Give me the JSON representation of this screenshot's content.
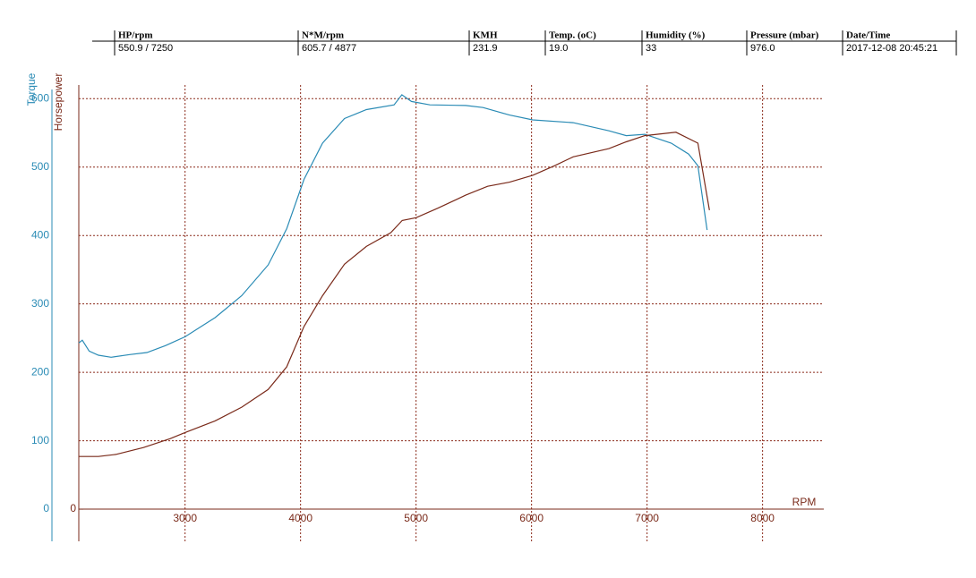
{
  "header": {
    "columns": [
      "HP/rpm",
      "N*M/rpm",
      "KMH",
      "Temp. (oC)",
      "Humidity (%)",
      "Pressure (mbar)",
      "Date/Time"
    ],
    "values": [
      "550.9 / 7250",
      "605.7 / 4877",
      "231.9",
      "19.0",
      "33",
      "976.0",
      "2017-12-08 20:45:21"
    ]
  },
  "chart_data": {
    "type": "line",
    "x_label": "RPM",
    "xlim": [
      2080,
      8530
    ],
    "xticks": [
      3000,
      4000,
      5000,
      6000,
      7000,
      8000
    ],
    "ylim": [
      -47,
      620
    ],
    "yticks": [
      0,
      100,
      200,
      300,
      400,
      500,
      600
    ],
    "y2lim": [
      -47,
      620
    ],
    "y2ticks": [
      0
    ],
    "grid": true,
    "series": [
      {
        "name": "Torque",
        "color": "#2a8bb5",
        "x": [
          2080,
          2110,
          2170,
          2250,
          2360,
          2520,
          2670,
          2830,
          3000,
          3260,
          3490,
          3720,
          3880,
          4030,
          4190,
          4380,
          4570,
          4810,
          4877,
          4960,
          5120,
          5430,
          5580,
          5810,
          6010,
          6360,
          6670,
          6820,
          6980,
          7210,
          7360,
          7440,
          7520
        ],
        "values": [
          243,
          247,
          231,
          225,
          222,
          226,
          229,
          239,
          252,
          280,
          312,
          357,
          410,
          482,
          535,
          571,
          584,
          591,
          605.7,
          596,
          591,
          590,
          587,
          576,
          569,
          565,
          553,
          546,
          548,
          535,
          519,
          502,
          408
        ]
      },
      {
        "name": "Horsepower",
        "color": "#7a2a1a",
        "axis": "y2",
        "x": [
          2080,
          2250,
          2400,
          2640,
          2870,
          3000,
          3260,
          3490,
          3720,
          3880,
          4030,
          4190,
          4380,
          4570,
          4780,
          4880,
          5000,
          5190,
          5430,
          5620,
          5810,
          6010,
          6200,
          6360,
          6670,
          6820,
          6980,
          7250,
          7440,
          7540
        ],
        "values": [
          77,
          77,
          80,
          90,
          103,
          112,
          129,
          149,
          175,
          208,
          267,
          312,
          358,
          384,
          404,
          422,
          426,
          440,
          459,
          472,
          478,
          488,
          502,
          515,
          527,
          537,
          546,
          550.9,
          535,
          437
        ]
      }
    ]
  }
}
